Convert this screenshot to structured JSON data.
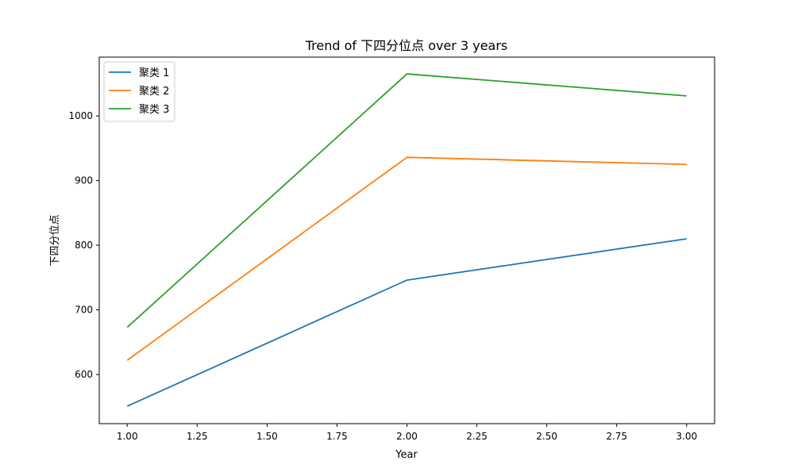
{
  "chart_data": {
    "type": "line",
    "title": "Trend of 下四分位点 over 3 years",
    "xlabel": "Year",
    "ylabel": "下四分位点",
    "x": [
      1.0,
      2.0,
      3.0
    ],
    "xlim": [
      0.9,
      3.1
    ],
    "ylim": [
      524,
      1091
    ],
    "xticks": [
      1.0,
      1.25,
      1.5,
      1.75,
      2.0,
      2.25,
      2.5,
      2.75,
      3.0
    ],
    "xtick_labels": [
      "1.00",
      "1.25",
      "1.50",
      "1.75",
      "2.00",
      "2.25",
      "2.50",
      "2.75",
      "3.00"
    ],
    "yticks": [
      600,
      700,
      800,
      900,
      1000
    ],
    "ytick_labels": [
      "600",
      "700",
      "800",
      "900",
      "1000"
    ],
    "grid": false,
    "legend_position": "top-left",
    "series": [
      {
        "name": "聚类 1",
        "color": "#1f77b4",
        "values": [
          551,
          746,
          810
        ]
      },
      {
        "name": "聚类 2",
        "color": "#ff7f0e",
        "values": [
          622,
          936,
          925
        ]
      },
      {
        "name": "聚类 3",
        "color": "#2ca02c",
        "values": [
          673,
          1065,
          1031
        ]
      }
    ]
  }
}
